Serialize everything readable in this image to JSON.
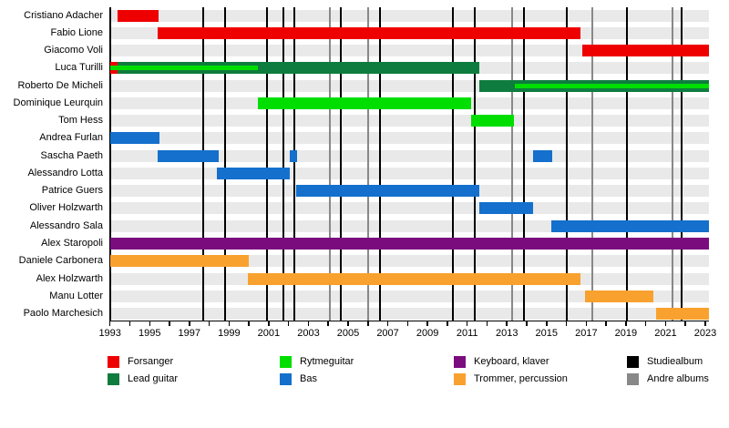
{
  "chart_data": {
    "type": "bar",
    "subtype": "band-membership-timeline",
    "title": "",
    "axis": {
      "min_year": 1993,
      "max_year": 2023.2,
      "tick_years_start": 1993,
      "tick_years_end": 2023,
      "tick_labels": [
        "1993",
        "1995",
        "1997",
        "1999",
        "2001",
        "2003",
        "2005",
        "2007",
        "2009",
        "2011",
        "2013",
        "2015",
        "2017",
        "2019",
        "2021",
        "2023"
      ],
      "label_years": [
        1993,
        1995,
        1997,
        1999,
        2001,
        2003,
        2005,
        2007,
        2009,
        2011,
        2013,
        2015,
        2017,
        2019,
        2021,
        2023
      ],
      "grid": false,
      "legend_position": "bottom"
    },
    "colors": {
      "forsanger": "#ee0000",
      "lead_guitar": "#0f7c3f",
      "rytmeguitar": "#00de00",
      "bas": "#1470cc",
      "keyboard": "#7b0c7e",
      "trommer": "#f9a12f",
      "studio_album": "#000000",
      "andre_albums": "#888888",
      "row_stripe": "#e9e9e9",
      "background": "#ffffff"
    },
    "members": [
      {
        "name": "Cristiano Adacher",
        "segments": [
          {
            "role": "forsanger",
            "start": 1993.4,
            "end": 1995.45
          }
        ]
      },
      {
        "name": "Fabio Lione",
        "segments": [
          {
            "role": "forsanger",
            "start": 1995.4,
            "end": 2016.7
          }
        ]
      },
      {
        "name": "Giacomo Voli",
        "segments": [
          {
            "role": "forsanger",
            "start": 2016.8,
            "end": 2023.2
          }
        ]
      },
      {
        "name": "Luca Turilli",
        "segments": [
          {
            "role": "forsanger",
            "start": 1993.0,
            "end": 1993.4
          },
          {
            "role": "lead_guitar",
            "start": 1993.4,
            "end": 2011.6
          },
          {
            "role": "rytmeguitar",
            "start": 1993.0,
            "end": 2000.45,
            "overlay": true
          }
        ]
      },
      {
        "name": "Roberto De Micheli",
        "segments": [
          {
            "role": "lead_guitar",
            "start": 2011.6,
            "end": 2023.2
          },
          {
            "role": "rytmeguitar",
            "start": 2013.4,
            "end": 2023.2,
            "overlay": true
          }
        ]
      },
      {
        "name": "Dominique Leurquin",
        "segments": [
          {
            "role": "rytmeguitar",
            "start": 2000.45,
            "end": 2011.2
          }
        ]
      },
      {
        "name": "Tom Hess",
        "segments": [
          {
            "role": "rytmeguitar",
            "start": 2011.2,
            "end": 2013.35
          }
        ]
      },
      {
        "name": "Andrea Furlan",
        "segments": [
          {
            "role": "bas",
            "start": 1993.0,
            "end": 1995.5
          }
        ]
      },
      {
        "name": "Sascha Paeth",
        "segments": [
          {
            "role": "bas",
            "start": 1995.4,
            "end": 1998.5
          },
          {
            "role": "bas",
            "start": 2002.05,
            "end": 2002.45
          },
          {
            "role": "bas",
            "start": 2014.3,
            "end": 2015.3
          }
        ]
      },
      {
        "name": "Alessandro Lotta",
        "segments": [
          {
            "role": "bas",
            "start": 1998.4,
            "end": 2002.05
          }
        ]
      },
      {
        "name": "Patrice Guers",
        "segments": [
          {
            "role": "bas",
            "start": 2002.4,
            "end": 2011.6
          }
        ]
      },
      {
        "name": "Oliver Holzwarth",
        "segments": [
          {
            "role": "bas",
            "start": 2011.6,
            "end": 2014.3
          }
        ]
      },
      {
        "name": "Alessandro Sala",
        "segments": [
          {
            "role": "bas",
            "start": 2015.25,
            "end": 2023.2
          }
        ]
      },
      {
        "name": "Alex Staropoli",
        "segments": [
          {
            "role": "keyboard",
            "start": 1993.0,
            "end": 2023.2
          }
        ]
      },
      {
        "name": "Daniele Carbonera",
        "segments": [
          {
            "role": "trommer",
            "start": 1993.0,
            "end": 2000.0
          }
        ]
      },
      {
        "name": "Alex Holzwarth",
        "segments": [
          {
            "role": "trommer",
            "start": 1999.95,
            "end": 2016.7
          }
        ]
      },
      {
        "name": "Manu Lotter",
        "segments": [
          {
            "role": "trommer",
            "start": 2016.95,
            "end": 2020.4
          }
        ]
      },
      {
        "name": "Paolo Marchesich",
        "segments": [
          {
            "role": "trommer",
            "start": 2020.5,
            "end": 2023.2
          }
        ]
      }
    ],
    "events": {
      "studio_albums": [
        1997.72,
        1998.78,
        2000.91,
        2001.76,
        2002.27,
        2004.63,
        2006.59,
        2010.28,
        2011.4,
        2013.88,
        2016.02,
        2019.05,
        2021.82
      ],
      "andre_albums": [
        2004.1,
        2006.0,
        2013.26,
        2017.3,
        2021.34
      ]
    },
    "legend": [
      {
        "label": "Forsanger",
        "color_key": "forsanger"
      },
      {
        "label": "Lead guitar",
        "color_key": "lead_guitar"
      },
      {
        "label": "Rytmeguitar",
        "color_key": "rytmeguitar"
      },
      {
        "label": "Bas",
        "color_key": "bas"
      },
      {
        "label": "Keyboard, klaver",
        "color_key": "keyboard"
      },
      {
        "label": "Trommer, percussion",
        "color_key": "trommer"
      },
      {
        "label": "Studiealbum",
        "color_key": "studio_album"
      },
      {
        "label": "Andre albums",
        "color_key": "andre_albums"
      }
    ]
  }
}
